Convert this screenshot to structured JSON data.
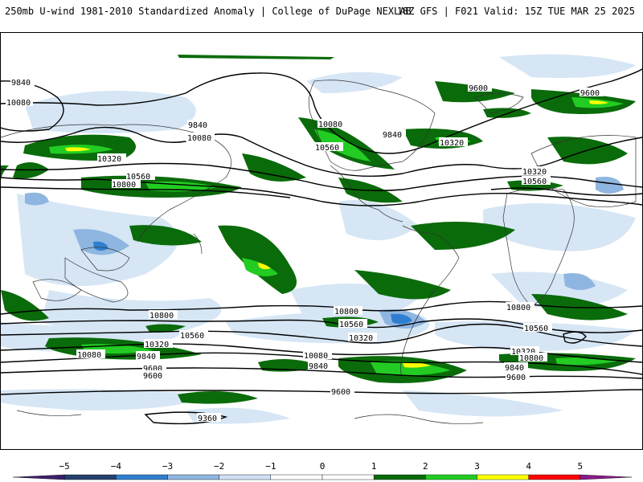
{
  "header": {
    "left_title": "250mb U-wind 1981-2010 Standardized Anomaly | College of DuPage NEXLAB",
    "right_title": "18Z GFS | F021 Valid: 15Z TUE MAR 25 2025"
  },
  "contour_labels": [
    "9840",
    "10080",
    "9840",
    "10080",
    "9600",
    "10320",
    "10560",
    "10800",
    "9840",
    "10080",
    "10320",
    "10560",
    "9600",
    "10320",
    "10560",
    "10800",
    "10800",
    "10560",
    "10320",
    "9600",
    "10800",
    "10560",
    "10320",
    "10080",
    "9840",
    "9600",
    "10800",
    "10560",
    "10320",
    "9840",
    "9600",
    "10080",
    "9840",
    "9600",
    "9360"
  ],
  "colorbar": {
    "ticks": [
      "−5",
      "−4",
      "−3",
      "−2",
      "−1",
      "0",
      "1",
      "2",
      "3",
      "4",
      "5"
    ],
    "colors": [
      "#3b1f6b",
      "#24406e",
      "#2f7fd0",
      "#8fb6e0",
      "#d0e2f5",
      "#ffffff",
      "#ffffff",
      "#0a6b0a",
      "#22cc22",
      "#ffff00",
      "#ff0000",
      "#8a1a8a"
    ]
  },
  "legend_colors": {
    "neg_light": "#d6e6f5",
    "neg_mid": "#8fb6e0",
    "neg_dark": "#2f7fd0",
    "pos_dark": "#0a6b0a",
    "pos_bright": "#22cc22",
    "pos_yellow": "#ffff00",
    "coast": "#333333"
  }
}
